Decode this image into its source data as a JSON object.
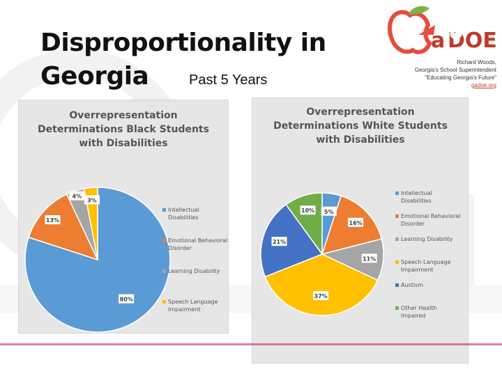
{
  "header": {
    "title": "Disproportionality in Georgia",
    "subtitle": "Past 5 Years"
  },
  "logo": {
    "text": "GaDOE",
    "colors": {
      "apple": "#e74c3c",
      "leaf": "#7cb342",
      "text": "#c0392b"
    }
  },
  "credit": {
    "name": "Richard Woods,",
    "role": "Georgia's School Superintendent",
    "motto": "\"Educating Georgia's Future\"",
    "url": "gadoe.org"
  },
  "chart_data": [
    {
      "type": "pie",
      "title_lines": [
        "Overrepresentation",
        "Determinations Black Students",
        "with Disabilities"
      ],
      "slices": [
        {
          "label": "Intellectual Disabilities",
          "value": 80,
          "display": "80%",
          "color": "#5b9bd5"
        },
        {
          "label": "Emotional Behavioral Disorder",
          "value": 13,
          "display": "13%",
          "color": "#ed7d31"
        },
        {
          "label": "Learning Disability",
          "value": 4,
          "display": "4%",
          "color": "#a5a5a5"
        },
        {
          "label": "Speech Language Impairment",
          "value": 3,
          "display": "3%",
          "color": "#ffc000"
        }
      ],
      "legend_position": "right"
    },
    {
      "type": "pie",
      "title_lines": [
        "Overrepresentation",
        "Determinations White Students",
        "with Disabilities"
      ],
      "slices": [
        {
          "label": "Intellectual Disabilities",
          "value": 5,
          "display": "5%",
          "color": "#5b9bd5"
        },
        {
          "label": "Emotional Behavioral Disorder",
          "value": 16,
          "display": "16%",
          "color": "#ed7d31"
        },
        {
          "label": "Learning Disability",
          "value": 11,
          "display": "11%",
          "color": "#a5a5a5"
        },
        {
          "label": "Speech Language Impairment",
          "value": 37,
          "display": "37%",
          "color": "#ffc000"
        },
        {
          "label": "Austism",
          "value": 21,
          "display": "21%",
          "color": "#4472c4"
        },
        {
          "label": "Other Health Impaired",
          "value": 10,
          "display": "10%",
          "color": "#70ad47"
        }
      ],
      "legend_position": "right"
    }
  ]
}
